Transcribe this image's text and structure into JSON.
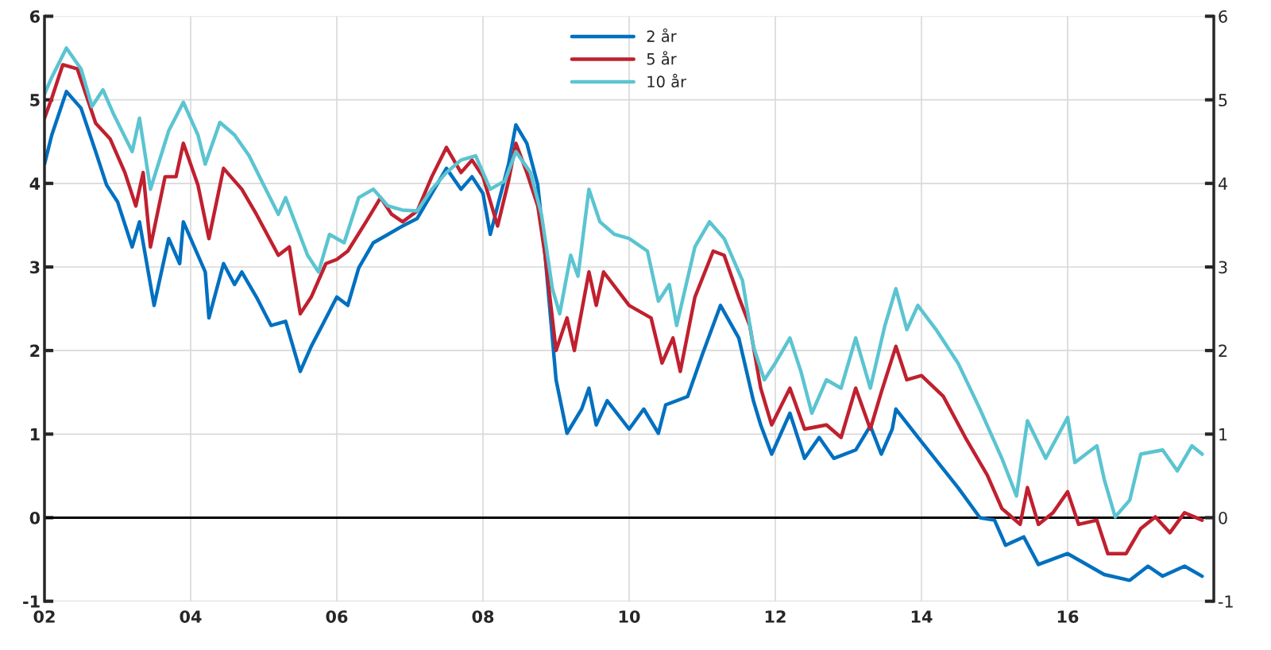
{
  "chart_data": {
    "type": "line",
    "xlim": [
      2002,
      2018
    ],
    "xticks": [
      {
        "value": 2002,
        "label": "02"
      },
      {
        "value": 2004,
        "label": "04"
      },
      {
        "value": 2006,
        "label": "06"
      },
      {
        "value": 2008,
        "label": "08"
      },
      {
        "value": 2010,
        "label": "10"
      },
      {
        "value": 2012,
        "label": "12"
      },
      {
        "value": 2014,
        "label": "14"
      },
      {
        "value": 2016,
        "label": "16"
      }
    ],
    "ylim": [
      -1,
      6
    ],
    "yticks": [
      -1,
      0,
      1,
      2,
      3,
      4,
      5,
      6
    ],
    "y2lim": [
      -1,
      6
    ],
    "y2ticks": [
      -1,
      0,
      1,
      2,
      3,
      4,
      5,
      6
    ],
    "grid": true,
    "legend": "top",
    "ref_lines": [
      {
        "axis": "y",
        "value": 0,
        "color": "#000000"
      }
    ],
    "series": [
      {
        "name": "2 år",
        "color": "#0070c0",
        "x": [
          2002.0,
          2002.1,
          2002.3,
          2002.5,
          2002.7,
          2002.85,
          2003.0,
          2003.2,
          2003.3,
          2003.5,
          2003.7,
          2003.85,
          2003.9,
          2004.2,
          2004.25,
          2004.45,
          2004.6,
          2004.7,
          2004.9,
          2005.1,
          2005.3,
          2005.5,
          2005.65,
          2005.8,
          2006.0,
          2006.15,
          2006.3,
          2006.5,
          2006.7,
          2006.9,
          2007.1,
          2007.3,
          2007.5,
          2007.7,
          2007.85,
          2008.0,
          2008.1,
          2008.2,
          2008.35,
          2008.45,
          2008.6,
          2008.75,
          2008.85,
          2009.0,
          2009.15,
          2009.35,
          2009.45,
          2009.55,
          2009.7,
          2010.0,
          2010.2,
          2010.4,
          2010.5,
          2010.8,
          2011.0,
          2011.25,
          2011.5,
          2011.7,
          2011.8,
          2011.95,
          2012.2,
          2012.4,
          2012.6,
          2012.8,
          2013.1,
          2013.3,
          2013.45,
          2013.6,
          2013.65,
          2014.0,
          2014.5,
          2014.8,
          2015.0,
          2015.15,
          2015.4,
          2015.6,
          2016.0,
          2016.3,
          2016.5,
          2016.85,
          2017.1,
          2017.3,
          2017.6,
          2017.84
        ],
        "values": [
          4.23,
          4.58,
          5.1,
          4.9,
          4.38,
          3.98,
          3.78,
          3.24,
          3.54,
          2.54,
          3.34,
          3.04,
          3.54,
          2.94,
          2.39,
          3.04,
          2.79,
          2.94,
          2.64,
          2.3,
          2.35,
          1.75,
          2.05,
          2.3,
          2.64,
          2.54,
          2.99,
          3.29,
          3.39,
          3.49,
          3.58,
          3.88,
          4.18,
          3.93,
          4.08,
          3.88,
          3.39,
          3.73,
          4.23,
          4.7,
          4.48,
          3.98,
          3.14,
          1.65,
          1.01,
          1.3,
          1.55,
          1.11,
          1.4,
          1.06,
          1.3,
          1.01,
          1.35,
          1.45,
          1.95,
          2.54,
          2.15,
          1.4,
          1.11,
          0.76,
          1.25,
          0.71,
          0.96,
          0.71,
          0.81,
          1.1,
          0.76,
          1.06,
          1.3,
          0.91,
          0.36,
          0.0,
          -0.03,
          -0.33,
          -0.23,
          -0.56,
          -0.43,
          -0.58,
          -0.68,
          -0.75,
          -0.58,
          -0.7,
          -0.58,
          -0.7
        ]
      },
      {
        "name": "5 år",
        "color": "#c0202f",
        "x": [
          2002.0,
          2002.1,
          2002.25,
          2002.45,
          2002.7,
          2002.9,
          2003.1,
          2003.25,
          2003.35,
          2003.45,
          2003.65,
          2003.8,
          2003.9,
          2004.1,
          2004.25,
          2004.45,
          2004.7,
          2004.9,
          2005.2,
          2005.35,
          2005.5,
          2005.65,
          2005.85,
          2006.0,
          2006.15,
          2006.4,
          2006.6,
          2006.75,
          2006.9,
          2007.1,
          2007.3,
          2007.5,
          2007.7,
          2007.85,
          2008.0,
          2008.2,
          2008.35,
          2008.45,
          2008.6,
          2008.75,
          2008.85,
          2009.0,
          2009.15,
          2009.25,
          2009.45,
          2009.55,
          2009.65,
          2010.0,
          2010.3,
          2010.45,
          2010.6,
          2010.7,
          2010.9,
          2011.15,
          2011.3,
          2011.5,
          2011.65,
          2011.8,
          2011.95,
          2012.2,
          2012.4,
          2012.7,
          2012.9,
          2013.1,
          2013.3,
          2013.45,
          2013.65,
          2013.8,
          2014.0,
          2014.3,
          2014.6,
          2014.9,
          2015.1,
          2015.35,
          2015.45,
          2015.6,
          2015.8,
          2016.0,
          2016.15,
          2016.4,
          2016.55,
          2016.8,
          2017.0,
          2017.2,
          2017.4,
          2017.6,
          2017.84
        ],
        "values": [
          4.78,
          5.02,
          5.42,
          5.37,
          4.72,
          4.53,
          4.13,
          3.73,
          4.13,
          3.24,
          4.08,
          4.08,
          4.48,
          3.98,
          3.34,
          4.18,
          3.93,
          3.63,
          3.14,
          3.24,
          2.44,
          2.64,
          3.04,
          3.09,
          3.19,
          3.54,
          3.83,
          3.63,
          3.54,
          3.67,
          4.08,
          4.43,
          4.13,
          4.28,
          4.08,
          3.49,
          4.03,
          4.48,
          4.13,
          3.73,
          3.14,
          2.0,
          2.39,
          2.0,
          2.94,
          2.54,
          2.94,
          2.54,
          2.39,
          1.85,
          2.15,
          1.75,
          2.64,
          3.19,
          3.14,
          2.64,
          2.3,
          1.55,
          1.11,
          1.55,
          1.06,
          1.11,
          0.96,
          1.55,
          1.06,
          1.5,
          2.05,
          1.65,
          1.7,
          1.45,
          0.96,
          0.51,
          0.11,
          -0.08,
          0.36,
          -0.08,
          0.06,
          0.31,
          -0.08,
          -0.03,
          -0.43,
          -0.43,
          -0.13,
          0.01,
          -0.18,
          0.06,
          -0.03
        ]
      },
      {
        "name": "10 år",
        "color": "#5bc4d1",
        "x": [
          2002.0,
          2002.1,
          2002.3,
          2002.5,
          2002.65,
          2002.8,
          2002.95,
          2003.2,
          2003.3,
          2003.45,
          2003.7,
          2003.9,
          2004.1,
          2004.2,
          2004.4,
          2004.6,
          2004.8,
          2005.0,
          2005.2,
          2005.3,
          2005.6,
          2005.75,
          2005.9,
          2006.1,
          2006.3,
          2006.5,
          2006.7,
          2006.9,
          2007.1,
          2007.3,
          2007.5,
          2007.7,
          2007.9,
          2008.1,
          2008.3,
          2008.45,
          2008.65,
          2008.8,
          2008.95,
          2009.05,
          2009.2,
          2009.3,
          2009.45,
          2009.6,
          2009.8,
          2010.0,
          2010.25,
          2010.4,
          2010.55,
          2010.65,
          2010.9,
          2011.1,
          2011.3,
          2011.55,
          2011.7,
          2011.85,
          2012.0,
          2012.2,
          2012.35,
          2012.5,
          2012.7,
          2012.9,
          2013.1,
          2013.3,
          2013.5,
          2013.65,
          2013.8,
          2013.95,
          2014.2,
          2014.5,
          2014.8,
          2015.1,
          2015.3,
          2015.45,
          2015.7,
          2016.0,
          2016.1,
          2016.4,
          2016.5,
          2016.65,
          2016.85,
          2017.0,
          2017.3,
          2017.5,
          2017.7,
          2017.84
        ],
        "values": [
          5.07,
          5.27,
          5.62,
          5.37,
          4.92,
          5.12,
          4.82,
          4.38,
          4.78,
          3.93,
          4.63,
          4.97,
          4.58,
          4.23,
          4.73,
          4.58,
          4.33,
          3.98,
          3.63,
          3.83,
          3.14,
          2.94,
          3.39,
          3.29,
          3.83,
          3.93,
          3.73,
          3.68,
          3.67,
          3.93,
          4.13,
          4.28,
          4.33,
          3.93,
          4.03,
          4.38,
          4.13,
          3.63,
          2.74,
          2.44,
          3.14,
          2.89,
          3.93,
          3.54,
          3.39,
          3.34,
          3.19,
          2.59,
          2.79,
          2.3,
          3.24,
          3.54,
          3.34,
          2.84,
          2.05,
          1.65,
          1.85,
          2.15,
          1.75,
          1.25,
          1.65,
          1.55,
          2.15,
          1.55,
          2.3,
          2.74,
          2.25,
          2.54,
          2.25,
          1.85,
          1.3,
          0.71,
          0.26,
          1.16,
          0.71,
          1.2,
          0.66,
          0.86,
          0.46,
          0.01,
          0.21,
          0.76,
          0.81,
          0.56,
          0.86,
          0.76
        ]
      }
    ]
  }
}
